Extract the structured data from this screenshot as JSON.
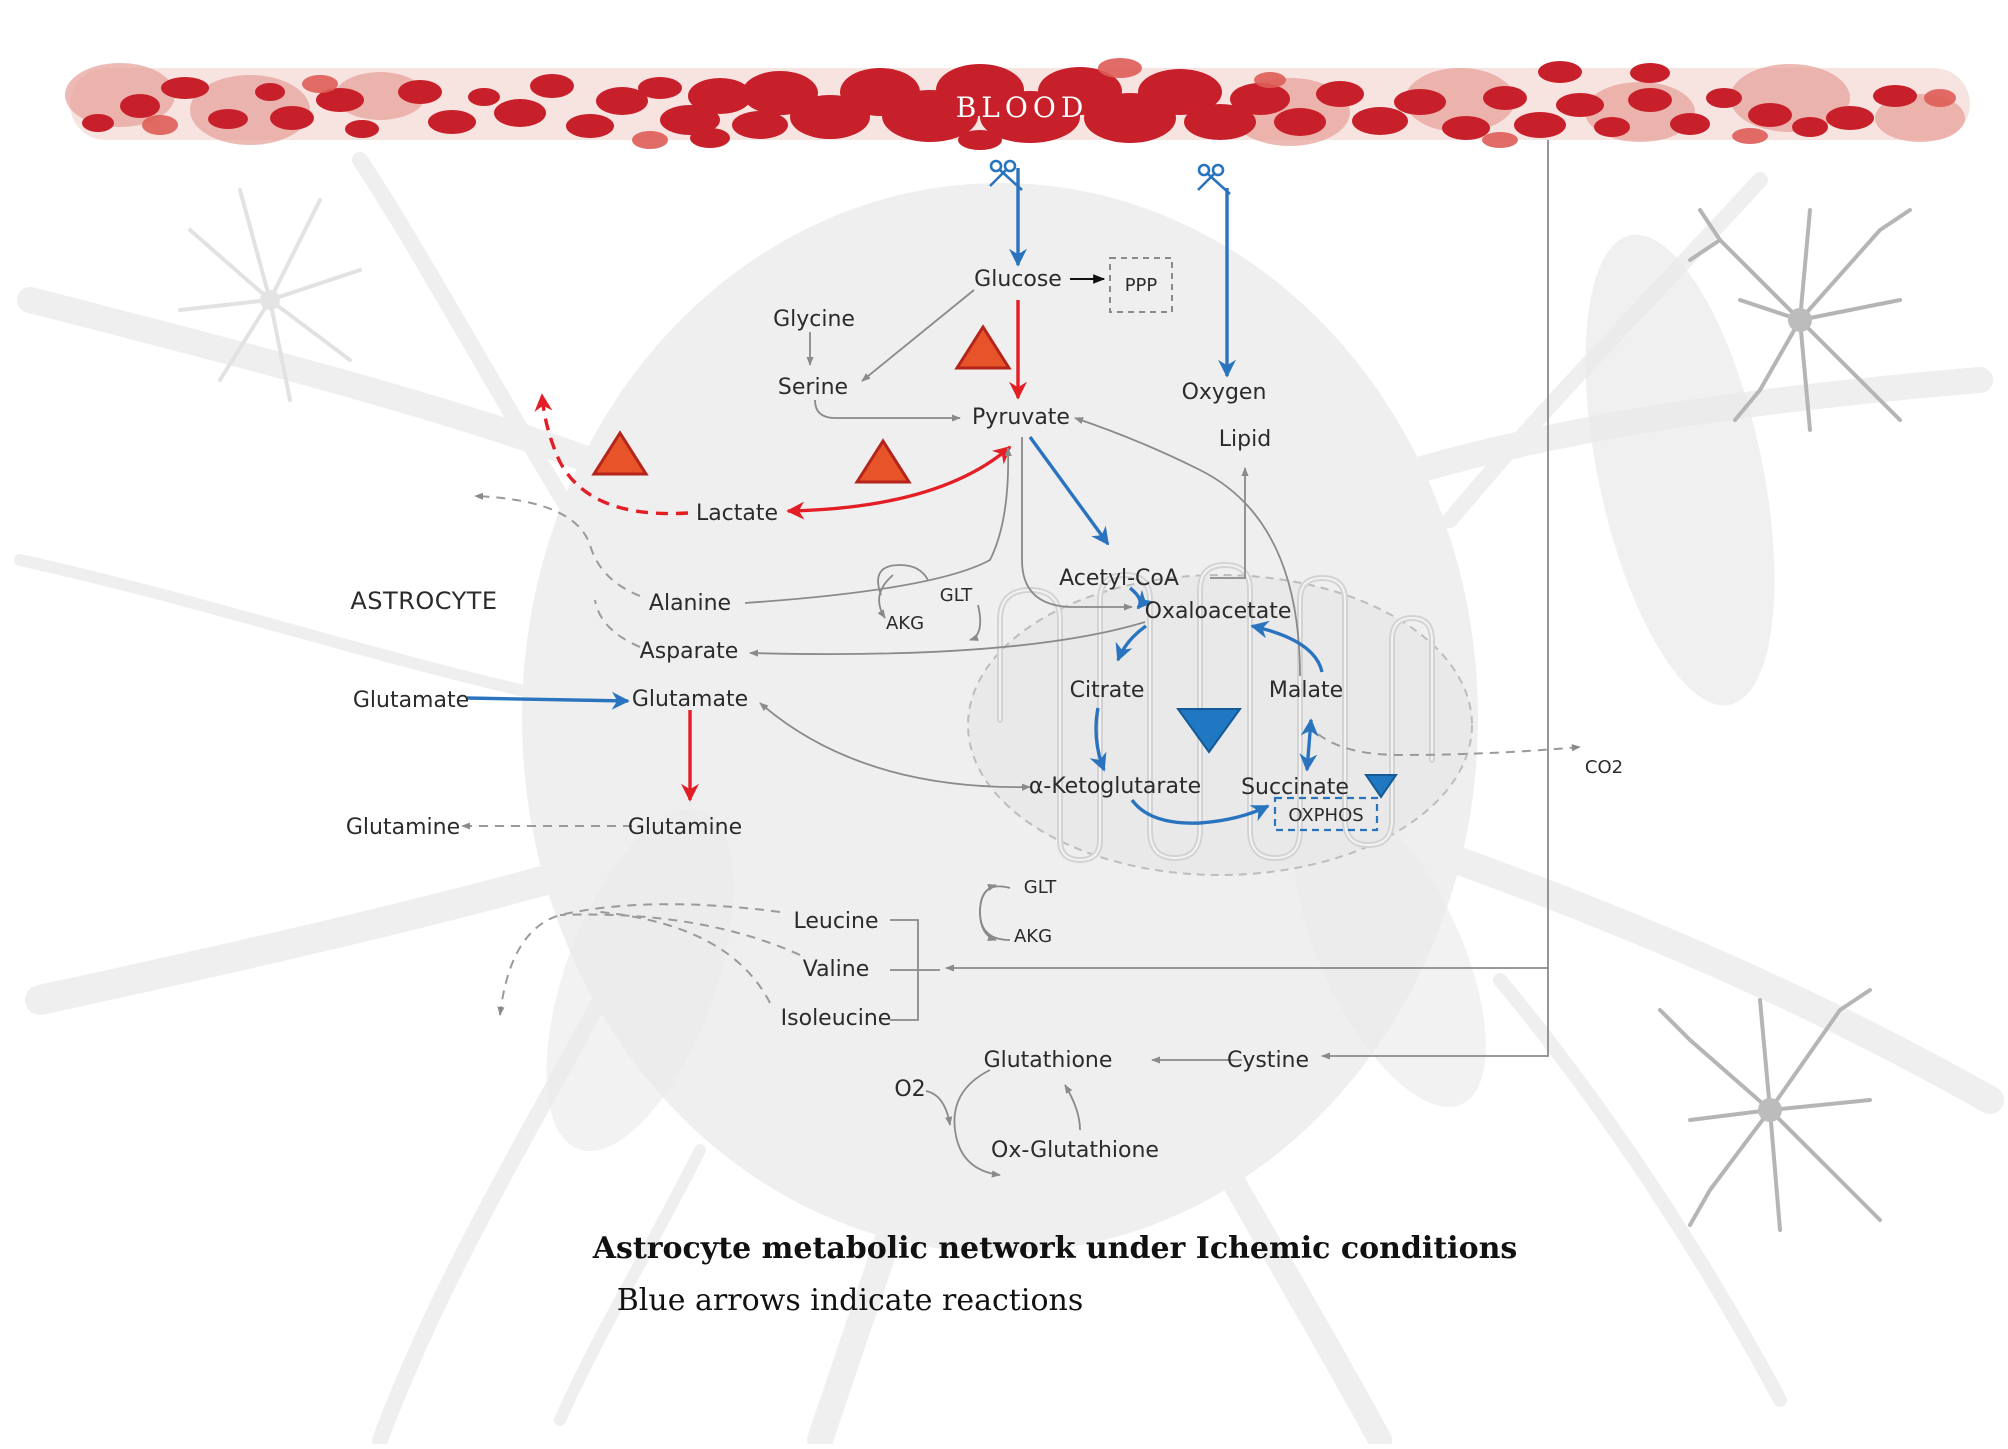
{
  "blood": {
    "label": "BLOOD"
  },
  "cell_label": "ASTROCYTE",
  "metabolites": {
    "glucose": "Glucose",
    "ppp": "PPP",
    "glycine": "Glycine",
    "serine": "Serine",
    "pyruvate": "Pyruvate",
    "oxygen": "Oxygen",
    "lipid": "Lipid",
    "lactate": "Lactate",
    "alanine": "Alanine",
    "asparate": "Asparate",
    "glt_1": "GLT",
    "akg_1": "AKG",
    "acetyl_coa": "Acetyl-CoA",
    "oxaloacetate": "Oxaloacetate",
    "citrate": "Citrate",
    "malate": "Malate",
    "a_ketoglutarate": "α-Ketoglutarate",
    "succinate": "Succinate",
    "oxphos": "OXPHOS",
    "co2": "CO2",
    "glutamate_ext": "Glutamate",
    "glutamate_int": "Glutamate",
    "glutamine_int": "Glutamine",
    "glutamine_ext": "Glutamine",
    "leucine": "Leucine",
    "valine": "Valine",
    "isoleucine": "Isoleucine",
    "glt_2": "GLT",
    "akg_2": "AKG",
    "glutathione": "Glutathione",
    "cystine": "Cystine",
    "o2": "O2",
    "ox_glutathione": "Ox-Glutathione"
  },
  "caption": {
    "title": "Astrocyte metabolic network under Ichemic conditions",
    "subtitle": "Blue arrows indicate reactions"
  },
  "colors": {
    "blue": "#2a74bf",
    "red": "#e31e24",
    "gray": "#8a8a8a",
    "blood": "#c8202a",
    "blood_light": "#e79a94",
    "increase": "#e8542a",
    "decrease": "#1f78c1"
  },
  "icons": [
    "scissors-icon",
    "increase-triangle-icon",
    "decrease-triangle-icon",
    "astrocyte-cell-icon"
  ]
}
